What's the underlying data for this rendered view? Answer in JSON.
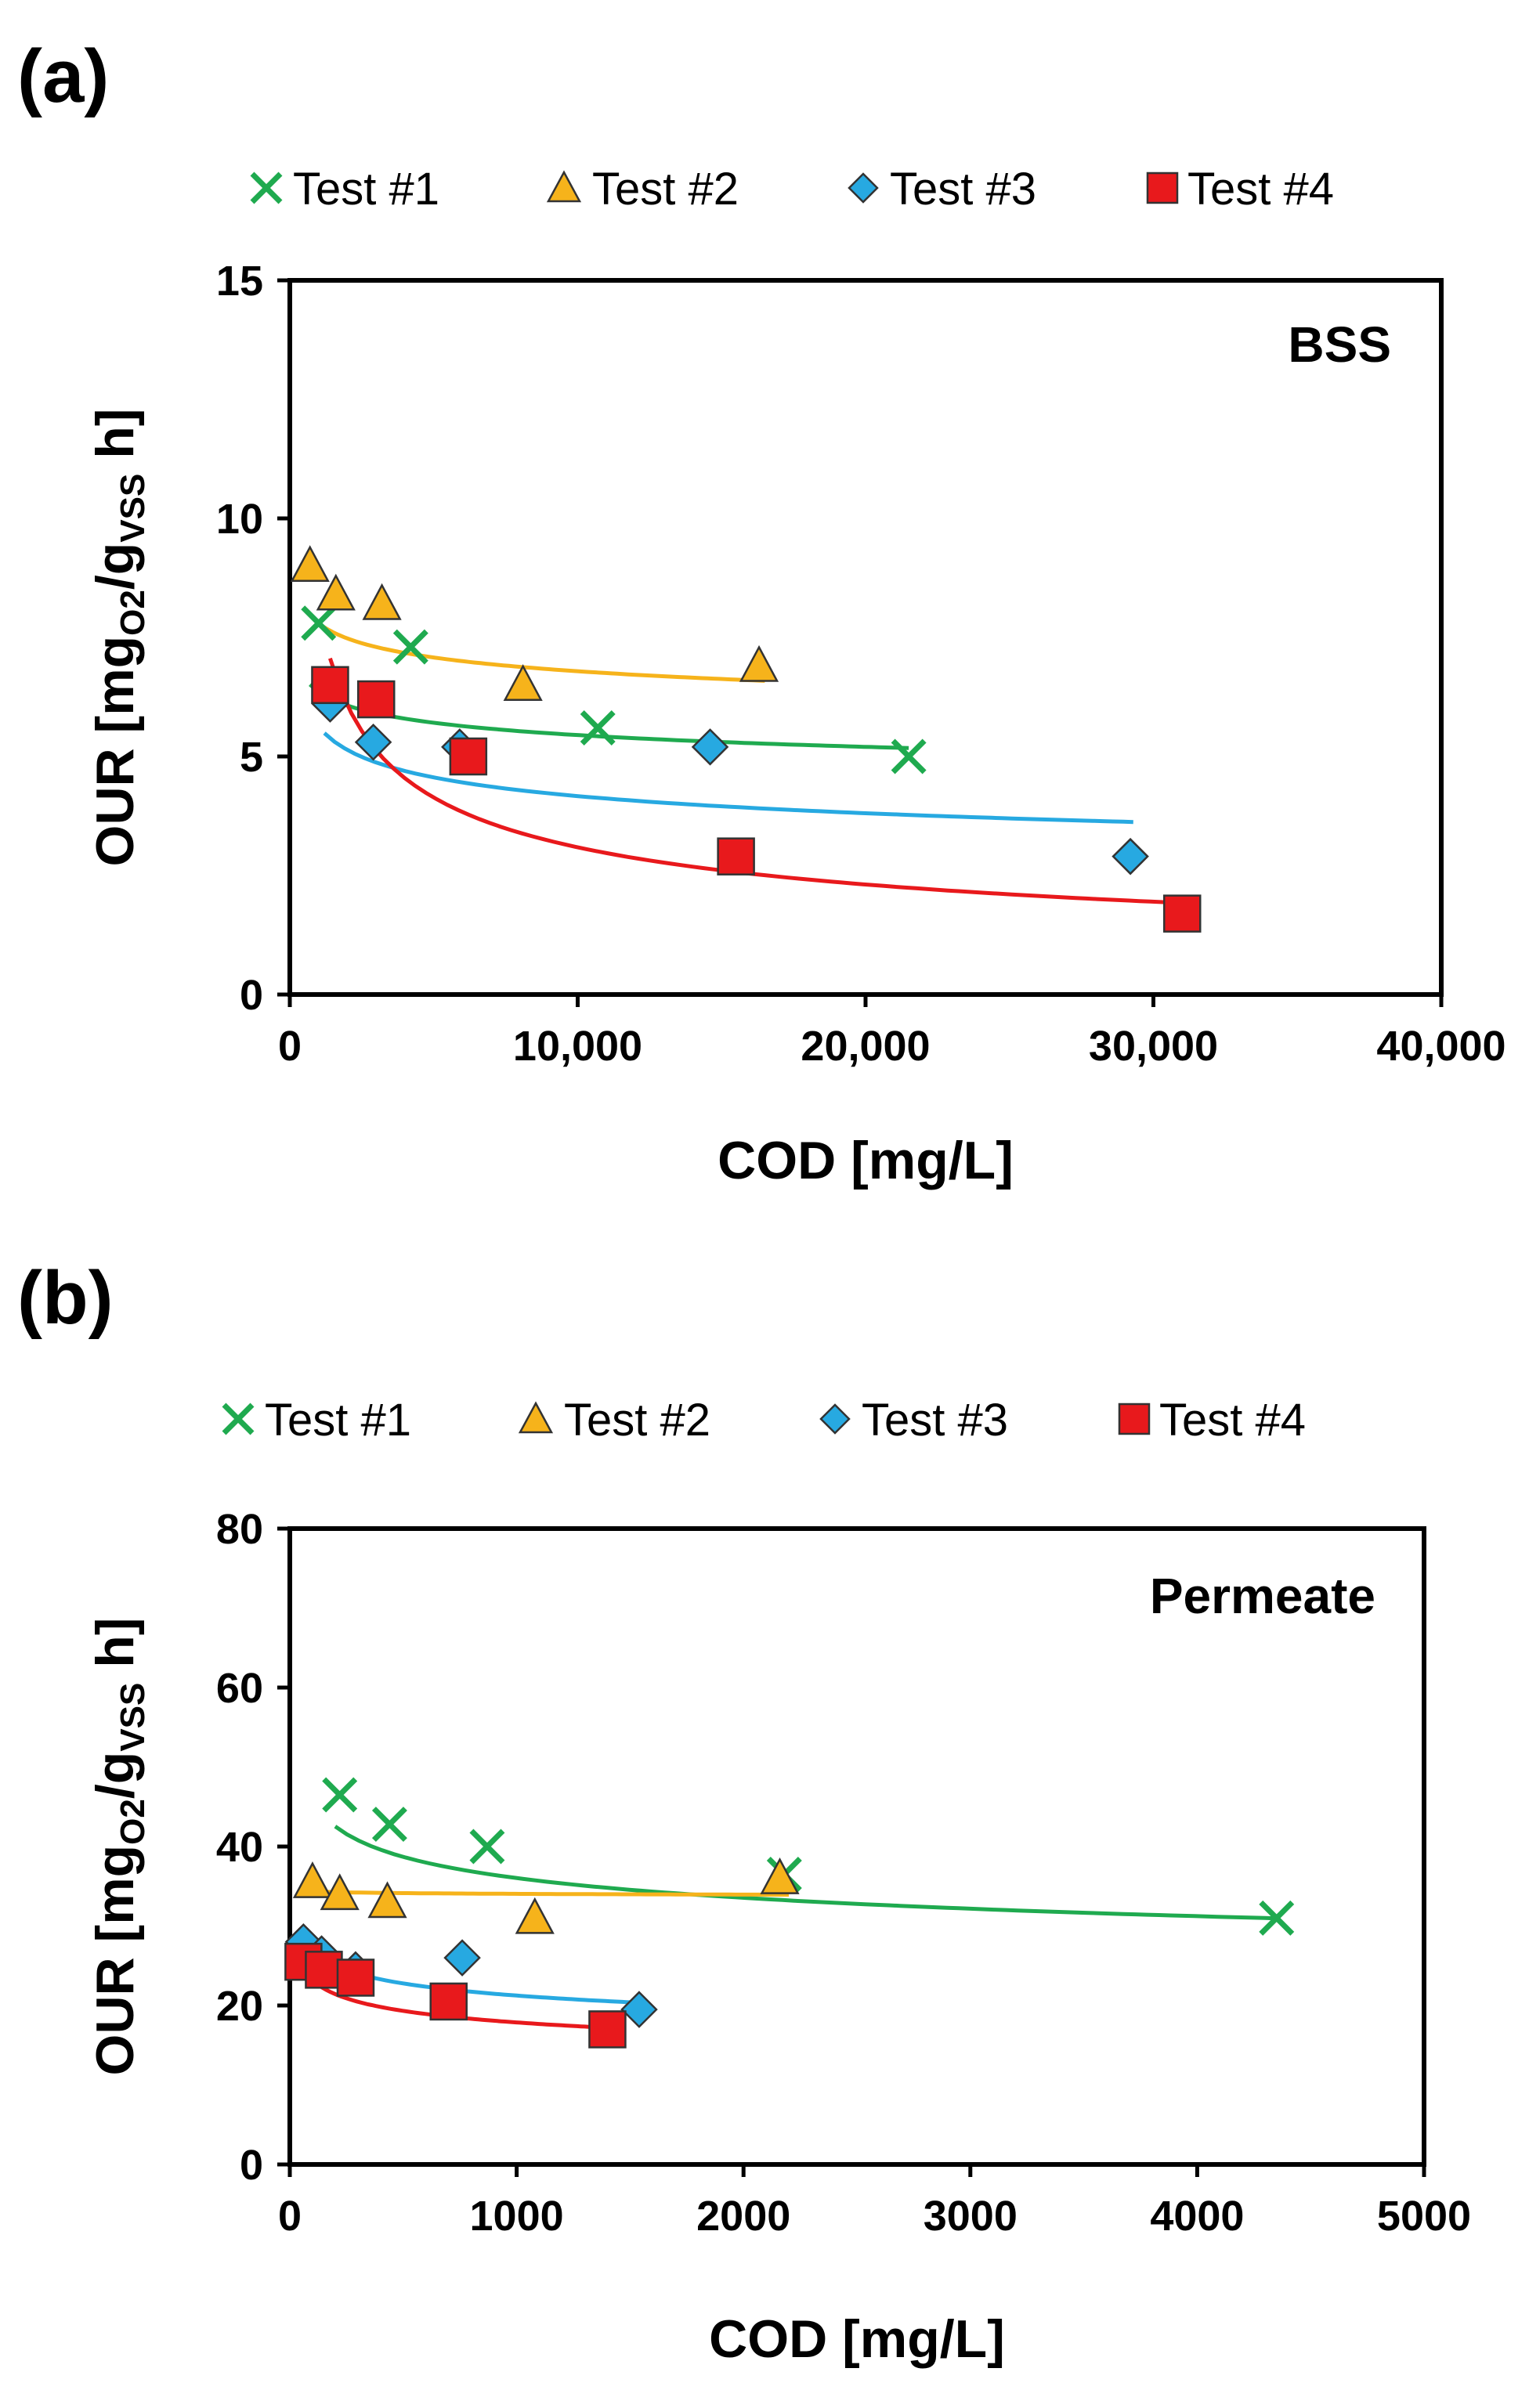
{
  "chart_data": [
    {
      "panel": "(a)",
      "type": "scatter",
      "annotation": "BSS",
      "title": "",
      "xlabel": "COD [mg/L]",
      "ylabel": {
        "main": "OUR [mg",
        "sub1": "O2",
        "mid": "/g",
        "sub2": "VSS",
        "end": " h]"
      },
      "xlim": [
        0,
        40000
      ],
      "ylim": [
        0,
        15
      ],
      "xticks": [
        0,
        10000,
        20000,
        30000,
        40000
      ],
      "xtick_labels": [
        "0",
        "10,000",
        "20,000",
        "30,000",
        "40,000"
      ],
      "yticks": [
        0,
        5,
        10,
        15
      ],
      "ytick_labels": [
        "0",
        "5",
        "10",
        "15"
      ],
      "legend_position": "top",
      "series": [
        {
          "name": "Test #1",
          "marker": "x",
          "color": "#1faa4f",
          "points": [
            [
              1000,
              7.8
            ],
            [
              4200,
              7.3
            ],
            [
              10700,
              5.6
            ],
            [
              21500,
              5.0
            ]
          ],
          "trend": {
            "type": "power",
            "a": 10.1,
            "b": -0.067,
            "x0": 700,
            "x1": 21500
          }
        },
        {
          "name": "Test #2",
          "marker": "triangle",
          "color": "#f6b31b",
          "points": [
            [
              700,
              9.0
            ],
            [
              1600,
              8.4
            ],
            [
              3200,
              8.2
            ],
            [
              8100,
              6.5
            ],
            [
              16300,
              6.9
            ]
          ],
          "trend": {
            "type": "power",
            "a": 11.8,
            "b": -0.06,
            "x0": 700,
            "x1": 16500
          }
        },
        {
          "name": "Test #3",
          "marker": "diamond",
          "color": "#27a9e1",
          "points": [
            [
              1400,
              6.1
            ],
            [
              2900,
              5.3
            ],
            [
              5900,
              5.2
            ],
            [
              14600,
              5.2
            ],
            [
              29200,
              2.9
            ]
          ],
          "trend": {
            "type": "power",
            "a": 13.8,
            "b": -0.13,
            "x0": 1200,
            "x1": 29300
          }
        },
        {
          "name": "Test #4",
          "marker": "square",
          "color": "#e8191c",
          "points": [
            [
              1400,
              6.5
            ],
            [
              3000,
              6.2
            ],
            [
              6200,
              5.0
            ],
            [
              15500,
              2.9
            ],
            [
              31000,
              1.7
            ]
          ],
          "trend": {
            "type": "power",
            "a": 148,
            "b": -0.42,
            "x0": 1400,
            "x1": 31000
          }
        }
      ]
    },
    {
      "panel": "(b)",
      "type": "scatter",
      "annotation": "Permeate",
      "title": "",
      "xlabel": "COD [mg/L]",
      "ylabel": {
        "main": "OUR [mg",
        "sub1": "O2",
        "mid": "/g",
        "sub2": "VSS",
        "end": " h]"
      },
      "xlim": [
        0,
        5000
      ],
      "ylim": [
        0,
        80
      ],
      "xticks": [
        0,
        1000,
        2000,
        3000,
        4000,
        5000
      ],
      "xtick_labels": [
        "0",
        "1000",
        "2000",
        "3000",
        "4000",
        "5000"
      ],
      "yticks": [
        0,
        20,
        40,
        60,
        80
      ],
      "ytick_labels": [
        "0",
        "20",
        "40",
        "60",
        "80"
      ],
      "legend_position": "top",
      "series": [
        {
          "name": "Test #1",
          "marker": "x",
          "color": "#1faa4f",
          "points": [
            [
              220,
              46.5
            ],
            [
              440,
              42.8
            ],
            [
              870,
              40.0
            ],
            [
              2180,
              36.5
            ],
            [
              4350,
              31.0
            ]
          ],
          "trend": {
            "type": "power",
            "a": 73.4,
            "b": -0.103,
            "x0": 200,
            "x1": 4350
          }
        },
        {
          "name": "Test #2",
          "marker": "triangle",
          "color": "#f6b31b",
          "points": [
            [
              100,
              35.5
            ],
            [
              220,
              34.0
            ],
            [
              430,
              33.0
            ],
            [
              1080,
              31.0
            ],
            [
              2160,
              36.0
            ]
          ],
          "trend": {
            "type": "power",
            "a": 35.0,
            "b": -0.004,
            "x0": 100,
            "x1": 2200
          }
        },
        {
          "name": "Test #3",
          "marker": "diamond",
          "color": "#27a9e1",
          "points": [
            [
              60,
              28.0
            ],
            [
              140,
              26.5
            ],
            [
              290,
              24.5
            ],
            [
              760,
              26.0
            ],
            [
              1540,
              19.5
            ]
          ],
          "trend": {
            "type": "power",
            "a": 42.4,
            "b": -0.1,
            "x0": 50,
            "x1": 1540
          }
        },
        {
          "name": "Test #4",
          "marker": "square",
          "color": "#e8191c",
          "points": [
            [
              60,
              25.5
            ],
            [
              150,
              24.5
            ],
            [
              290,
              23.5
            ],
            [
              700,
              20.5
            ],
            [
              1400,
              17.0
            ]
          ],
          "trend": {
            "type": "power",
            "a": 39.0,
            "b": -0.113,
            "x0": 60,
            "x1": 1400
          }
        }
      ]
    }
  ]
}
